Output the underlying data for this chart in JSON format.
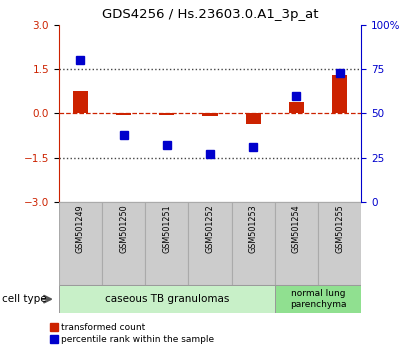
{
  "title": "GDS4256 / Hs.23603.0.A1_3p_at",
  "samples": [
    "GSM501249",
    "GSM501250",
    "GSM501251",
    "GSM501252",
    "GSM501253",
    "GSM501254",
    "GSM501255"
  ],
  "red_bars": [
    0.75,
    -0.05,
    -0.05,
    -0.1,
    -0.38,
    0.38,
    1.3
  ],
  "blue_pct": [
    80,
    38,
    32,
    27,
    31,
    60,
    73
  ],
  "ylim_left": [
    -3,
    3
  ],
  "ylim_right": [
    0,
    100
  ],
  "yticks_left": [
    -3,
    -1.5,
    0,
    1.5,
    3
  ],
  "yticks_right": [
    0,
    25,
    50,
    75,
    100
  ],
  "ytick_labels_right": [
    "0",
    "25",
    "50",
    "75",
    "100%"
  ],
  "group1_label": "caseous TB granulomas",
  "group2_label": "normal lung\nparenchyma",
  "group1_color": "#c8f0c8",
  "group2_color": "#90e090",
  "cell_type_label": "cell type",
  "legend_red": "transformed count",
  "legend_blue": "percentile rank within the sample",
  "red_color": "#cc2200",
  "blue_color": "#0000cc",
  "bar_width": 0.35,
  "blue_marker_size": 6,
  "dashed_zero_color": "#cc2200",
  "dotted_line_color": "#444444",
  "plot_bg_color": "#ffffff",
  "tick_label_bg": "#cccccc",
  "tick_label_edge": "#aaaaaa",
  "n_group1": 5,
  "n_group2": 2
}
